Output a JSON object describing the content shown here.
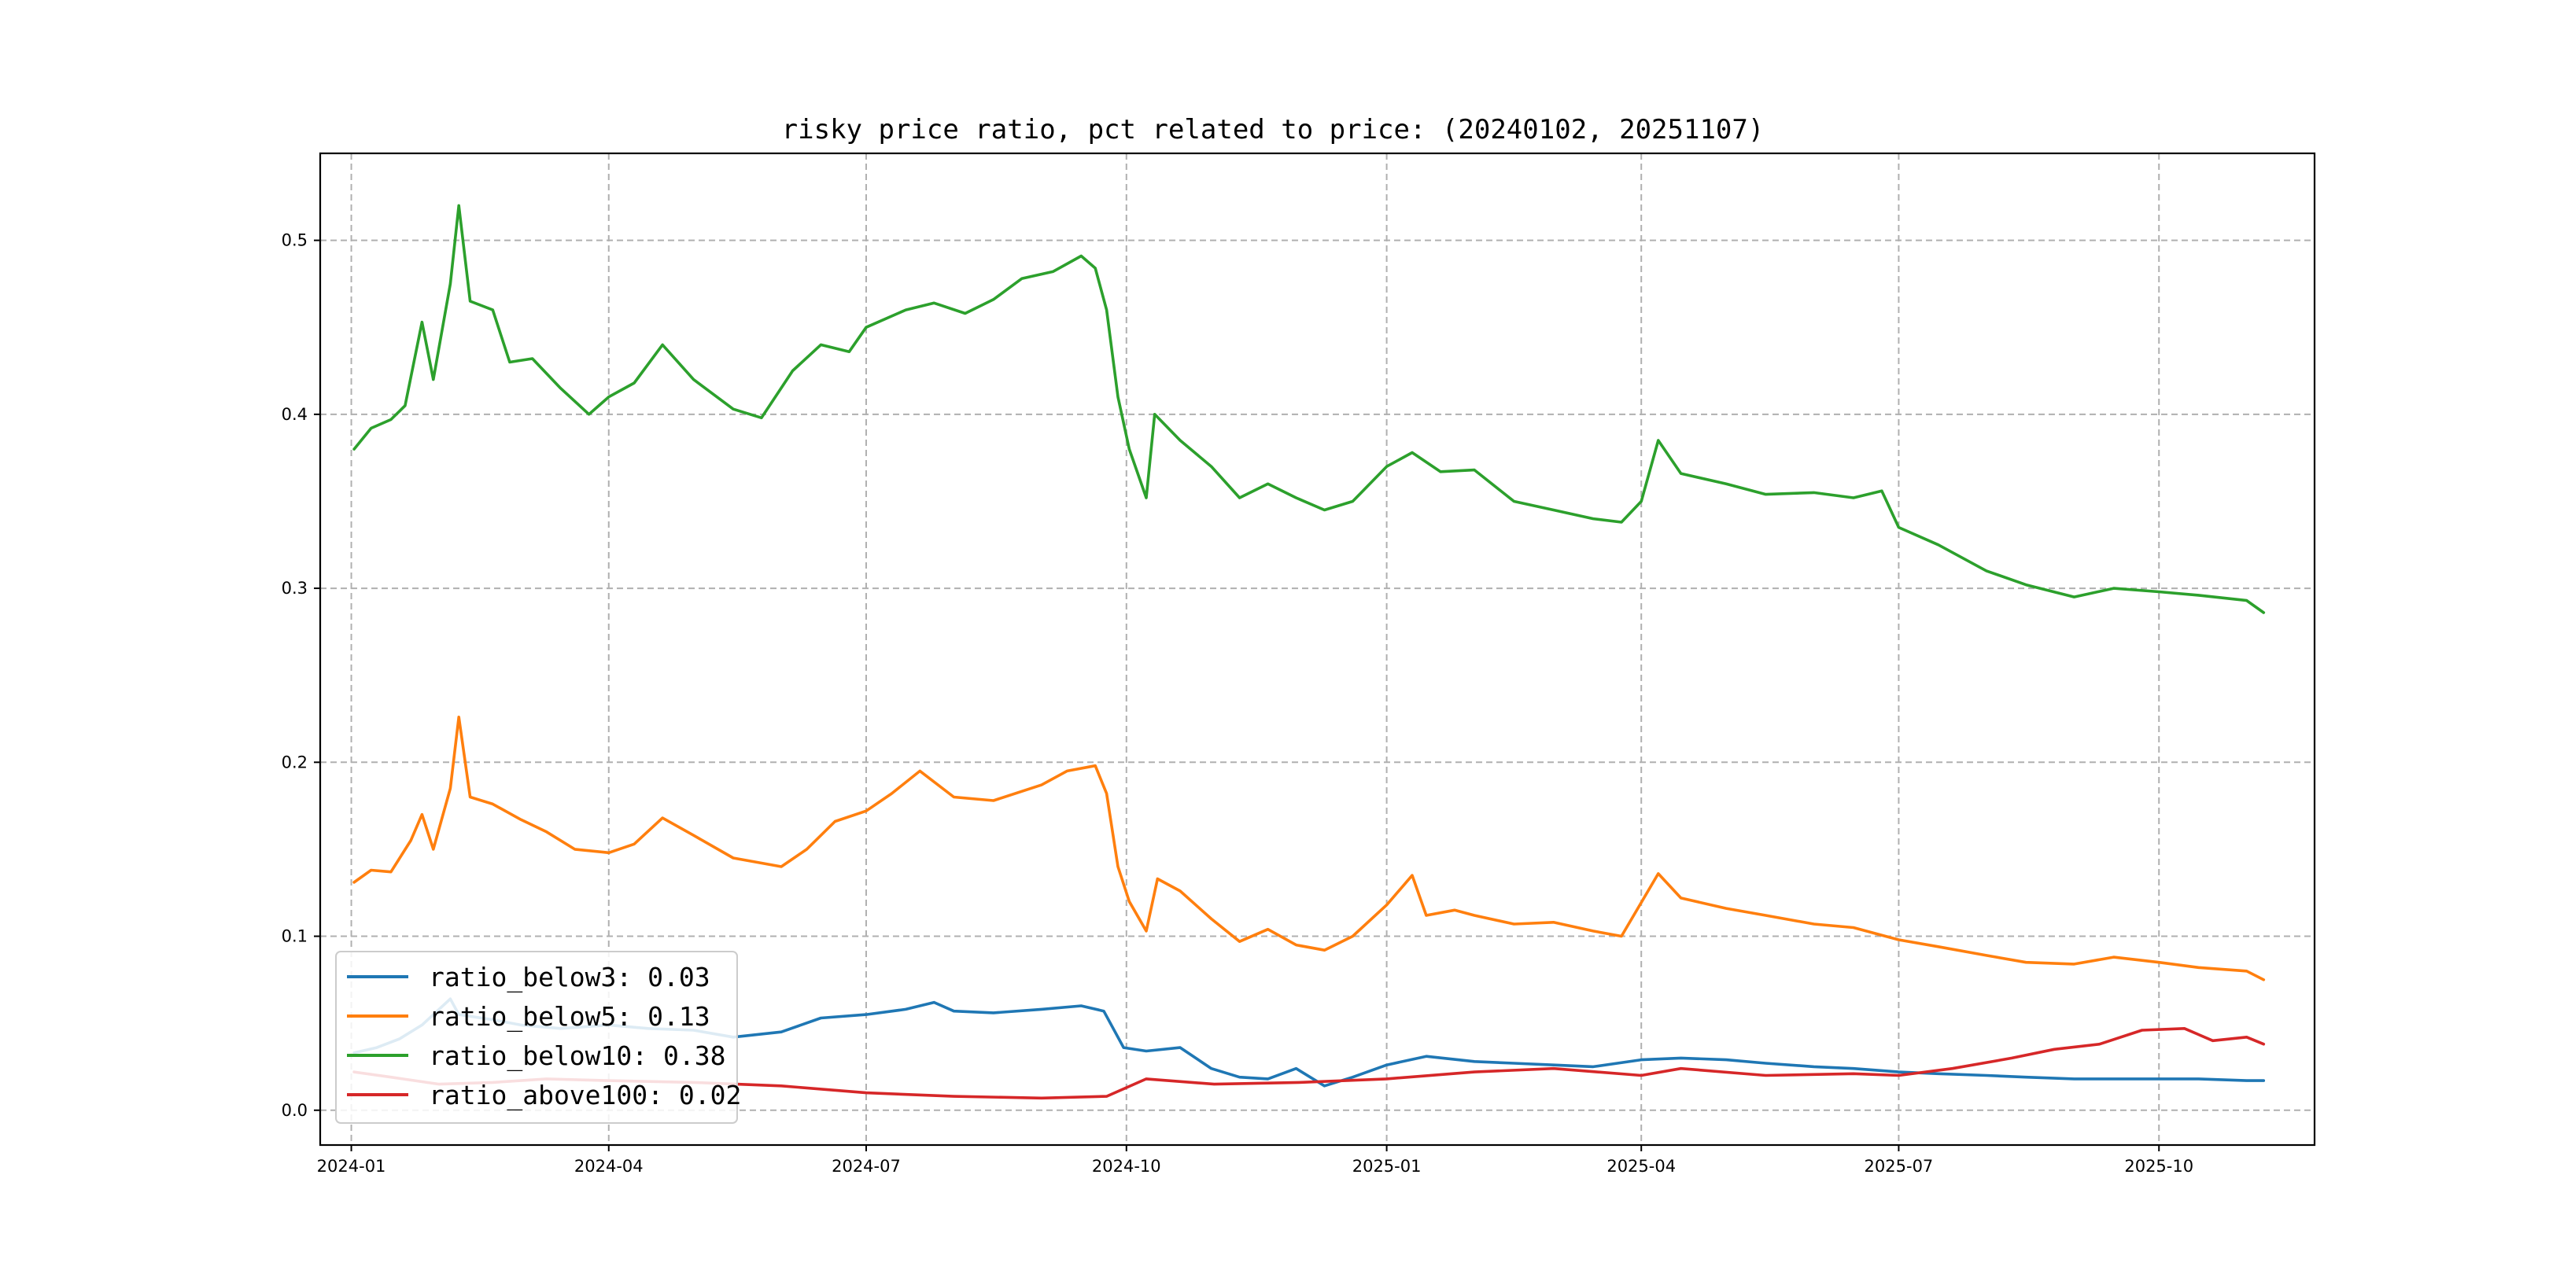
{
  "chart_data": {
    "type": "line",
    "title": "risky price ratio, pct related to price: (20240102, 20251107)",
    "xlabel": "",
    "ylabel": "",
    "x_range": [
      "2023-12-21",
      "2025-11-25"
    ],
    "ylim": [
      -0.02,
      0.55
    ],
    "x_ticks": [
      "2024-01",
      "2024-04",
      "2024-07",
      "2024-10",
      "2025-01",
      "2025-04",
      "2025-07",
      "2025-10"
    ],
    "y_ticks": [
      0.0,
      0.1,
      0.2,
      0.3,
      0.4,
      0.5
    ],
    "y_tick_labels": [
      "0.0",
      "0.1",
      "0.2",
      "0.3",
      "0.4",
      "0.5"
    ],
    "grid": true,
    "legend_position": "lower-left",
    "series": [
      {
        "name": "ratio_below3",
        "legend_label": "ratio_below3: 0.03",
        "color": "#1f77b4",
        "points": [
          [
            "2024-01-02",
            0.033
          ],
          [
            "2024-01-10",
            0.036
          ],
          [
            "2024-01-18",
            0.041
          ],
          [
            "2024-01-26",
            0.049
          ],
          [
            "2024-02-05",
            0.064
          ],
          [
            "2024-02-08",
            0.055
          ],
          [
            "2024-02-20",
            0.052
          ],
          [
            "2024-03-01",
            0.049
          ],
          [
            "2024-03-15",
            0.047
          ],
          [
            "2024-04-01",
            0.049
          ],
          [
            "2024-04-15",
            0.047
          ],
          [
            "2024-05-01",
            0.046
          ],
          [
            "2024-05-15",
            0.042
          ],
          [
            "2024-06-01",
            0.045
          ],
          [
            "2024-06-15",
            0.053
          ],
          [
            "2024-07-01",
            0.055
          ],
          [
            "2024-07-15",
            0.058
          ],
          [
            "2024-07-25",
            0.062
          ],
          [
            "2024-08-01",
            0.057
          ],
          [
            "2024-08-15",
            0.056
          ],
          [
            "2024-09-01",
            0.058
          ],
          [
            "2024-09-15",
            0.06
          ],
          [
            "2024-09-23",
            0.057
          ],
          [
            "2024-09-30",
            0.036
          ],
          [
            "2024-10-08",
            0.034
          ],
          [
            "2024-10-20",
            0.036
          ],
          [
            "2024-10-31",
            0.024
          ],
          [
            "2024-11-10",
            0.019
          ],
          [
            "2024-11-20",
            0.018
          ],
          [
            "2024-11-30",
            0.024
          ],
          [
            "2024-12-10",
            0.014
          ],
          [
            "2024-12-20",
            0.019
          ],
          [
            "2025-01-01",
            0.026
          ],
          [
            "2025-01-15",
            0.031
          ],
          [
            "2025-02-01",
            0.028
          ],
          [
            "2025-02-15",
            0.027
          ],
          [
            "2025-03-01",
            0.026
          ],
          [
            "2025-03-15",
            0.025
          ],
          [
            "2025-04-01",
            0.029
          ],
          [
            "2025-04-15",
            0.03
          ],
          [
            "2025-05-01",
            0.029
          ],
          [
            "2025-05-15",
            0.027
          ],
          [
            "2025-06-01",
            0.025
          ],
          [
            "2025-06-15",
            0.024
          ],
          [
            "2025-07-01",
            0.022
          ],
          [
            "2025-07-15",
            0.021
          ],
          [
            "2025-08-01",
            0.02
          ],
          [
            "2025-08-15",
            0.019
          ],
          [
            "2025-09-01",
            0.018
          ],
          [
            "2025-09-15",
            0.018
          ],
          [
            "2025-10-01",
            0.018
          ],
          [
            "2025-10-15",
            0.018
          ],
          [
            "2025-11-01",
            0.017
          ],
          [
            "2025-11-07",
            0.017
          ]
        ]
      },
      {
        "name": "ratio_below5",
        "legend_label": "ratio_below5: 0.13",
        "color": "#ff7f0e",
        "points": [
          [
            "2024-01-02",
            0.131
          ],
          [
            "2024-01-08",
            0.138
          ],
          [
            "2024-01-15",
            0.137
          ],
          [
            "2024-01-22",
            0.155
          ],
          [
            "2024-01-26",
            0.17
          ],
          [
            "2024-01-30",
            0.15
          ],
          [
            "2024-02-05",
            0.185
          ],
          [
            "2024-02-08",
            0.226
          ],
          [
            "2024-02-12",
            0.18
          ],
          [
            "2024-02-20",
            0.176
          ],
          [
            "2024-03-01",
            0.167
          ],
          [
            "2024-03-10",
            0.16
          ],
          [
            "2024-03-20",
            0.15
          ],
          [
            "2024-04-01",
            0.148
          ],
          [
            "2024-04-10",
            0.153
          ],
          [
            "2024-04-20",
            0.168
          ],
          [
            "2024-05-01",
            0.158
          ],
          [
            "2024-05-15",
            0.145
          ],
          [
            "2024-06-01",
            0.14
          ],
          [
            "2024-06-10",
            0.15
          ],
          [
            "2024-06-20",
            0.166
          ],
          [
            "2024-07-01",
            0.172
          ],
          [
            "2024-07-10",
            0.182
          ],
          [
            "2024-07-20",
            0.195
          ],
          [
            "2024-08-01",
            0.18
          ],
          [
            "2024-08-15",
            0.178
          ],
          [
            "2024-09-01",
            0.187
          ],
          [
            "2024-09-10",
            0.195
          ],
          [
            "2024-09-20",
            0.198
          ],
          [
            "2024-09-24",
            0.182
          ],
          [
            "2024-09-28",
            0.14
          ],
          [
            "2024-10-02",
            0.12
          ],
          [
            "2024-10-08",
            0.103
          ],
          [
            "2024-10-12",
            0.133
          ],
          [
            "2024-10-20",
            0.126
          ],
          [
            "2024-10-31",
            0.11
          ],
          [
            "2024-11-10",
            0.097
          ],
          [
            "2024-11-20",
            0.104
          ],
          [
            "2024-11-30",
            0.095
          ],
          [
            "2024-12-10",
            0.092
          ],
          [
            "2024-12-20",
            0.1
          ],
          [
            "2025-01-01",
            0.118
          ],
          [
            "2025-01-10",
            0.135
          ],
          [
            "2025-01-15",
            0.112
          ],
          [
            "2025-01-25",
            0.115
          ],
          [
            "2025-02-01",
            0.112
          ],
          [
            "2025-02-15",
            0.107
          ],
          [
            "2025-03-01",
            0.108
          ],
          [
            "2025-03-15",
            0.103
          ],
          [
            "2025-03-25",
            0.1
          ],
          [
            "2025-04-07",
            0.136
          ],
          [
            "2025-04-15",
            0.122
          ],
          [
            "2025-05-01",
            0.116
          ],
          [
            "2025-05-15",
            0.112
          ],
          [
            "2025-06-01",
            0.107
          ],
          [
            "2025-06-15",
            0.105
          ],
          [
            "2025-07-01",
            0.098
          ],
          [
            "2025-07-15",
            0.094
          ],
          [
            "2025-08-01",
            0.089
          ],
          [
            "2025-08-15",
            0.085
          ],
          [
            "2025-09-01",
            0.084
          ],
          [
            "2025-09-15",
            0.088
          ],
          [
            "2025-10-01",
            0.085
          ],
          [
            "2025-10-15",
            0.082
          ],
          [
            "2025-11-01",
            0.08
          ],
          [
            "2025-11-07",
            0.075
          ]
        ]
      },
      {
        "name": "ratio_below10",
        "legend_label": "ratio_below10: 0.38",
        "color": "#2ca02c",
        "points": [
          [
            "2024-01-02",
            0.38
          ],
          [
            "2024-01-08",
            0.392
          ],
          [
            "2024-01-15",
            0.397
          ],
          [
            "2024-01-20",
            0.405
          ],
          [
            "2024-01-26",
            0.453
          ],
          [
            "2024-01-30",
            0.42
          ],
          [
            "2024-02-05",
            0.475
          ],
          [
            "2024-02-08",
            0.52
          ],
          [
            "2024-02-12",
            0.465
          ],
          [
            "2024-02-20",
            0.46
          ],
          [
            "2024-02-26",
            0.43
          ],
          [
            "2024-03-05",
            0.432
          ],
          [
            "2024-03-15",
            0.415
          ],
          [
            "2024-03-25",
            0.4
          ],
          [
            "2024-04-01",
            0.41
          ],
          [
            "2024-04-10",
            0.418
          ],
          [
            "2024-04-20",
            0.44
          ],
          [
            "2024-05-01",
            0.42
          ],
          [
            "2024-05-15",
            0.403
          ],
          [
            "2024-05-25",
            0.398
          ],
          [
            "2024-06-05",
            0.425
          ],
          [
            "2024-06-15",
            0.44
          ],
          [
            "2024-06-25",
            0.436
          ],
          [
            "2024-07-01",
            0.45
          ],
          [
            "2024-07-15",
            0.46
          ],
          [
            "2024-07-25",
            0.464
          ],
          [
            "2024-08-05",
            0.458
          ],
          [
            "2024-08-15",
            0.466
          ],
          [
            "2024-08-25",
            0.478
          ],
          [
            "2024-09-05",
            0.482
          ],
          [
            "2024-09-15",
            0.491
          ],
          [
            "2024-09-20",
            0.484
          ],
          [
            "2024-09-24",
            0.46
          ],
          [
            "2024-09-28",
            0.41
          ],
          [
            "2024-10-02",
            0.38
          ],
          [
            "2024-10-08",
            0.352
          ],
          [
            "2024-10-11",
            0.4
          ],
          [
            "2024-10-20",
            0.385
          ],
          [
            "2024-10-31",
            0.37
          ],
          [
            "2024-11-10",
            0.352
          ],
          [
            "2024-11-20",
            0.36
          ],
          [
            "2024-11-30",
            0.352
          ],
          [
            "2024-12-10",
            0.345
          ],
          [
            "2024-12-20",
            0.35
          ],
          [
            "2025-01-01",
            0.37
          ],
          [
            "2025-01-10",
            0.378
          ],
          [
            "2025-01-20",
            0.367
          ],
          [
            "2025-02-01",
            0.368
          ],
          [
            "2025-02-15",
            0.35
          ],
          [
            "2025-03-01",
            0.345
          ],
          [
            "2025-03-15",
            0.34
          ],
          [
            "2025-03-25",
            0.338
          ],
          [
            "2025-04-01",
            0.35
          ],
          [
            "2025-04-07",
            0.385
          ],
          [
            "2025-04-15",
            0.366
          ],
          [
            "2025-05-01",
            0.36
          ],
          [
            "2025-05-15",
            0.354
          ],
          [
            "2025-06-01",
            0.355
          ],
          [
            "2025-06-15",
            0.352
          ],
          [
            "2025-06-25",
            0.356
          ],
          [
            "2025-07-01",
            0.335
          ],
          [
            "2025-07-15",
            0.325
          ],
          [
            "2025-08-01",
            0.31
          ],
          [
            "2025-08-15",
            0.302
          ],
          [
            "2025-09-01",
            0.295
          ],
          [
            "2025-09-15",
            0.3
          ],
          [
            "2025-10-01",
            0.298
          ],
          [
            "2025-10-15",
            0.296
          ],
          [
            "2025-11-01",
            0.293
          ],
          [
            "2025-11-07",
            0.286
          ]
        ]
      },
      {
        "name": "ratio_above100",
        "legend_label": "ratio_above100: 0.02",
        "color": "#d62728",
        "points": [
          [
            "2024-01-02",
            0.022
          ],
          [
            "2024-01-15",
            0.019
          ],
          [
            "2024-02-01",
            0.015
          ],
          [
            "2024-02-20",
            0.016
          ],
          [
            "2024-03-10",
            0.018
          ],
          [
            "2024-04-01",
            0.017
          ],
          [
            "2024-05-01",
            0.016
          ],
          [
            "2024-06-01",
            0.014
          ],
          [
            "2024-07-01",
            0.01
          ],
          [
            "2024-08-01",
            0.008
          ],
          [
            "2024-09-01",
            0.007
          ],
          [
            "2024-09-24",
            0.008
          ],
          [
            "2024-10-08",
            0.018
          ],
          [
            "2024-11-01",
            0.015
          ],
          [
            "2024-12-01",
            0.016
          ],
          [
            "2025-01-01",
            0.018
          ],
          [
            "2025-02-01",
            0.022
          ],
          [
            "2025-03-01",
            0.024
          ],
          [
            "2025-04-01",
            0.02
          ],
          [
            "2025-04-15",
            0.024
          ],
          [
            "2025-05-15",
            0.02
          ],
          [
            "2025-06-15",
            0.021
          ],
          [
            "2025-07-01",
            0.02
          ],
          [
            "2025-07-20",
            0.024
          ],
          [
            "2025-08-10",
            0.03
          ],
          [
            "2025-08-25",
            0.035
          ],
          [
            "2025-09-10",
            0.038
          ],
          [
            "2025-09-25",
            0.046
          ],
          [
            "2025-10-10",
            0.047
          ],
          [
            "2025-10-20",
            0.04
          ],
          [
            "2025-11-01",
            0.042
          ],
          [
            "2025-11-07",
            0.038
          ]
        ]
      }
    ]
  }
}
